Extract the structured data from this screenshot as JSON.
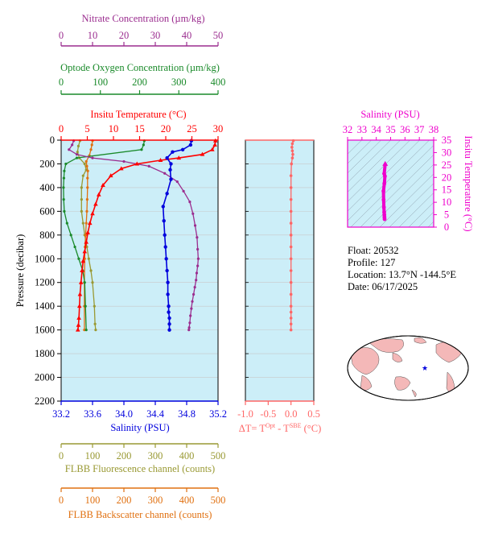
{
  "colors": {
    "nitrate": "#9b2d8f",
    "oxygen": "#1a8a2a",
    "temperature": "#ff0000",
    "salinity": "#0000dd",
    "fluorescence": "#999933",
    "backscatter": "#e07010",
    "deltaT": "#ff6666",
    "ts": "#ee00cc",
    "panel_bg": "#cceef8"
  },
  "info": {
    "float_line": "Float:  20532",
    "profile_line": "Profile:  127",
    "location_line": "Location:  13.7°N  -144.5°E",
    "date_line": "Date:  06/17/2025"
  },
  "chart_data": [
    {
      "type": "line",
      "name": "profile",
      "ylabel": "Pressure (decibar)",
      "ylim": [
        0,
        2200
      ],
      "yticks": [
        0,
        200,
        400,
        600,
        800,
        1000,
        1200,
        1400,
        1600,
        1800,
        2000,
        2200
      ],
      "axes": {
        "nitrate": {
          "label": "Nitrate Concentration (µm/kg)",
          "range": [
            0,
            50
          ],
          "ticks": [
            0,
            10,
            20,
            30,
            40,
            50
          ]
        },
        "oxygen": {
          "label": "Optode Oxygen Concentration (µm/kg)",
          "range": [
            0,
            400
          ],
          "ticks": [
            0,
            100,
            200,
            300,
            400
          ]
        },
        "temperature": {
          "label": "Insitu Temperature (°C)",
          "range": [
            0,
            30
          ],
          "ticks": [
            0,
            5,
            10,
            15,
            20,
            25,
            30
          ]
        },
        "salinity": {
          "label": "Salinity (PSU)",
          "range": [
            33.2,
            35.2
          ],
          "ticks": [
            "33.2",
            "33.6",
            "34.0",
            "34.4",
            "34.8",
            "35.2"
          ]
        },
        "fluorescence": {
          "label": "FLBB Fluorescence channel (counts)",
          "range": [
            0,
            500
          ],
          "ticks": [
            0,
            100,
            200,
            300,
            400,
            500
          ]
        },
        "backscatter": {
          "label": "FLBB Backscatter channel (counts)",
          "range": [
            0,
            500
          ],
          "ticks": [
            0,
            100,
            200,
            300,
            400,
            500
          ]
        }
      },
      "series": [
        {
          "key": "temperature",
          "x": [
            29.5,
            29.4,
            28.9,
            27.0,
            22.5,
            19.0,
            14.5,
            11.5,
            9.5,
            8.0,
            7.2,
            6.6,
            6.0,
            5.5,
            5.1,
            4.8,
            4.5,
            4.2,
            4.0,
            3.8,
            3.6,
            3.5,
            3.4,
            3.3,
            3.2
          ],
          "y": [
            5,
            40,
            80,
            120,
            150,
            170,
            200,
            240,
            300,
            380,
            460,
            540,
            620,
            700,
            780,
            860,
            940,
            1020,
            1100,
            1200,
            1300,
            1400,
            1500,
            1560,
            1600
          ]
        },
        {
          "key": "salinity",
          "x": [
            34.86,
            34.85,
            34.75,
            34.62,
            34.55,
            34.6,
            34.59,
            34.6,
            34.55,
            34.5,
            34.51,
            34.52,
            34.53,
            34.54,
            34.55,
            34.56,
            34.56,
            34.57,
            34.57,
            34.58,
            34.58,
            34.58
          ],
          "y": [
            5,
            40,
            80,
            100,
            150,
            200,
            250,
            330,
            450,
            560,
            680,
            800,
            900,
            1000,
            1100,
            1200,
            1300,
            1400,
            1450,
            1500,
            1550,
            1600
          ]
        },
        {
          "key": "nitrate",
          "x": [
            4,
            3.5,
            2.5,
            5,
            10,
            20,
            28,
            33,
            37,
            39,
            41,
            42,
            42.7,
            43.3,
            43.5,
            43.7,
            43.5,
            43.2,
            43,
            42.6,
            42.2,
            41.8,
            41.5,
            41.2,
            41,
            40.8,
            40.7
          ],
          "y": [
            5,
            40,
            80,
            120,
            150,
            180,
            220,
            280,
            350,
            430,
            520,
            620,
            720,
            820,
            920,
            1000,
            1060,
            1120,
            1180,
            1240,
            1300,
            1360,
            1420,
            1480,
            1540,
            1580,
            1600
          ]
        },
        {
          "key": "oxygen",
          "x": [
            212,
            210,
            205,
            40,
            12,
            8,
            7,
            6,
            6.5,
            8,
            15,
            25,
            35,
            45,
            55,
            60,
            62,
            64
          ],
          "y": [
            5,
            40,
            80,
            150,
            200,
            260,
            320,
            400,
            500,
            600,
            700,
            800,
            900,
            1000,
            1100,
            1200,
            1400,
            1600
          ]
        },
        {
          "key": "fluorescence",
          "x": [
            60,
            55,
            52,
            58,
            75,
            80,
            70,
            65,
            65,
            65,
            70,
            75,
            82,
            88,
            95,
            100,
            106,
            108,
            110
          ],
          "y": [
            5,
            50,
            100,
            150,
            200,
            250,
            300,
            400,
            500,
            600,
            700,
            800,
            900,
            1000,
            1100,
            1200,
            1400,
            1550,
            1600
          ]
        },
        {
          "key": "backscatter",
          "x": [
            100,
            98,
            95,
            90,
            80,
            82,
            85,
            84,
            84,
            83,
            82,
            80,
            78,
            76,
            75,
            74,
            74,
            74
          ],
          "y": [
            5,
            40,
            80,
            130,
            180,
            220,
            260,
            320,
            400,
            500,
            600,
            700,
            800,
            900,
            1000,
            1200,
            1400,
            1600
          ]
        }
      ]
    },
    {
      "type": "line",
      "name": "deltaT",
      "xlabel": "ΔT= T^Opt - T^SBE (°C)",
      "xlim": [
        -1.0,
        0.5
      ],
      "xticks": [
        "-1.0",
        "-0.5",
        "0.0",
        "0.5"
      ],
      "ylim": [
        0,
        2200
      ],
      "series": [
        {
          "name": "ΔT",
          "x": [
            0.05,
            0.03,
            0.02,
            0.03,
            0.04,
            0.03,
            0.01,
            0.0,
            0.0,
            0.0,
            0.0,
            0.0,
            0.0,
            0.0,
            0.0,
            0.0,
            0.0,
            0.0,
            0.0,
            0.0,
            0.0,
            0.0,
            0.0
          ],
          "y": [
            5,
            30,
            60,
            90,
            120,
            150,
            200,
            300,
            400,
            500,
            600,
            700,
            800,
            900,
            1000,
            1100,
            1200,
            1300,
            1400,
            1450,
            1500,
            1550,
            1600
          ]
        }
      ]
    },
    {
      "type": "scatter",
      "name": "ts-diagram",
      "xlabel": "Salinity (PSU)",
      "ylabel": "Insitu Temperature (°C)",
      "xlim": [
        32,
        38
      ],
      "ylim": [
        0,
        35
      ],
      "xticks": [
        32,
        33,
        34,
        35,
        36,
        37,
        38
      ],
      "yticks": [
        0,
        5,
        10,
        15,
        20,
        25,
        30,
        35
      ],
      "series": [
        {
          "name": "T-S",
          "x": [
            34.62,
            34.55,
            34.6,
            34.56,
            34.5,
            34.51,
            34.53,
            34.55,
            34.56,
            34.57,
            34.58
          ],
          "y": [
            25.3,
            21.5,
            20.5,
            17.5,
            14.5,
            11.0,
            8.0,
            6.0,
            5.0,
            4.0,
            3.2
          ]
        }
      ]
    }
  ]
}
